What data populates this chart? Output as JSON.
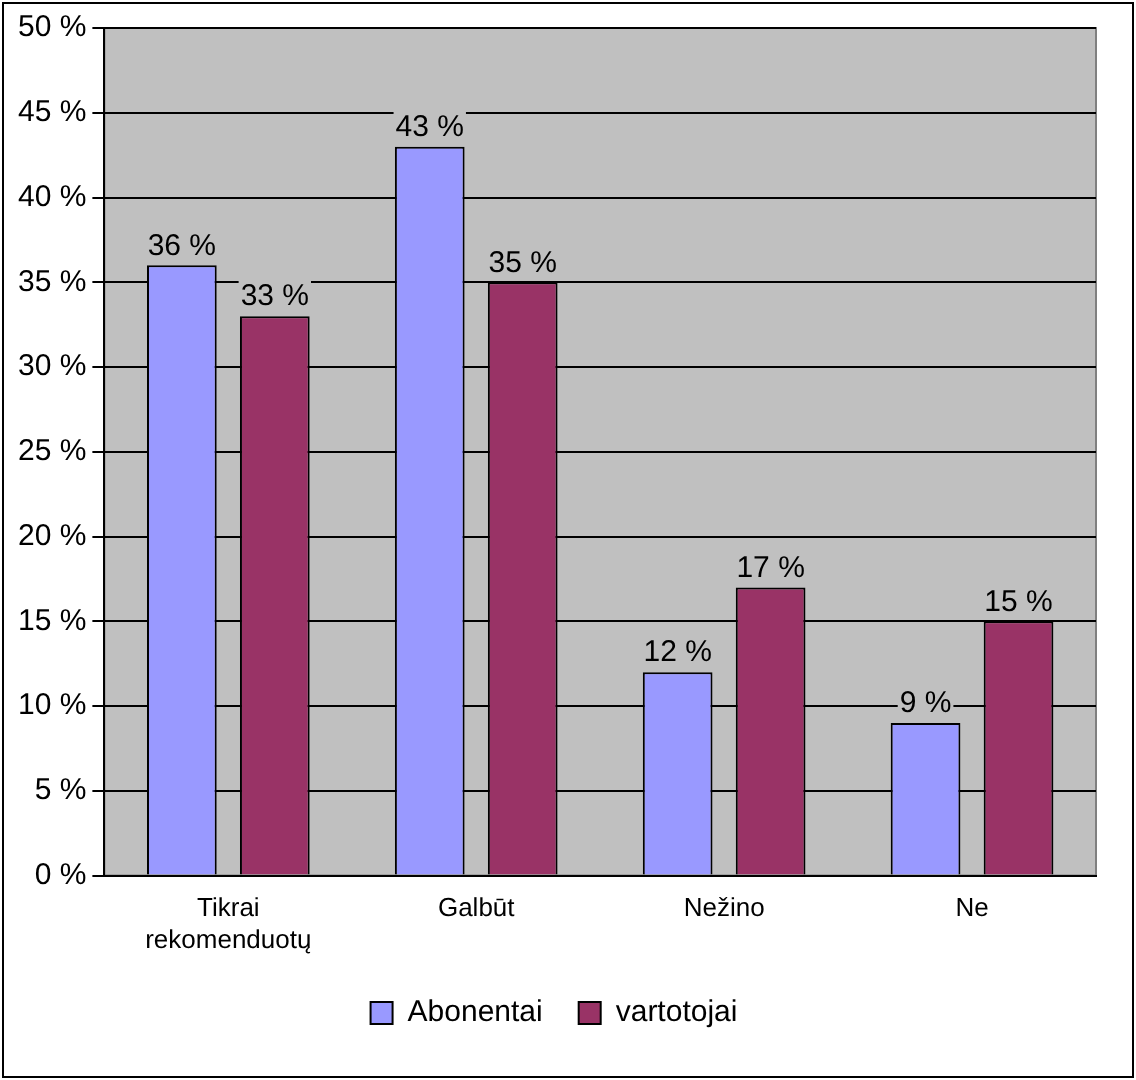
{
  "chart_data": {
    "type": "bar",
    "categories": [
      "Tikrai rekomenduotų",
      "Galbūt",
      "Nežino",
      "Ne"
    ],
    "series": [
      {
        "name": "Abonentai",
        "color": "#9999ff",
        "values": [
          36,
          43,
          12,
          9
        ],
        "value_labels": [
          "36 %",
          "43 %",
          "12 %",
          "9 %"
        ]
      },
      {
        "name": "vartotojai",
        "color": "#993366",
        "values": [
          33,
          35,
          17,
          15
        ],
        "value_labels": [
          "33 %",
          "35 %",
          "17 %",
          "15 %"
        ]
      }
    ],
    "ylim": [
      0,
      50
    ],
    "yticks": [
      {
        "value": 0,
        "label": "0 %"
      },
      {
        "value": 5,
        "label": "5 %"
      },
      {
        "value": 10,
        "label": "10 %"
      },
      {
        "value": 15,
        "label": "15 %"
      },
      {
        "value": 20,
        "label": "20 %"
      },
      {
        "value": 25,
        "label": "25 %"
      },
      {
        "value": 30,
        "label": "30 %"
      },
      {
        "value": 35,
        "label": "35 %"
      },
      {
        "value": 40,
        "label": "40 %"
      },
      {
        "value": 45,
        "label": "45 %"
      },
      {
        "value": 50,
        "label": "50 %"
      }
    ],
    "grid": "y",
    "legend": "bottom"
  }
}
